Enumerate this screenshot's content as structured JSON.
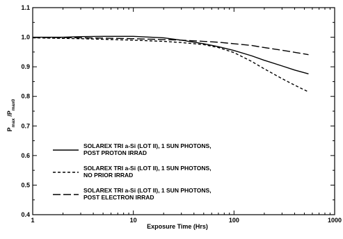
{
  "chart_data": {
    "type": "line",
    "title": "",
    "xlabel": "Exposure Time (Hrs)",
    "ylabel_parts": {
      "p1": "P",
      "s1": "max",
      "slash": " /P",
      "s2": "max0"
    },
    "xscale": "log",
    "xlim": [
      1,
      1000
    ],
    "ylim": [
      0.4,
      1.1
    ],
    "grid": false,
    "legend_position": "lower-left",
    "xticks": [
      {
        "value": 1,
        "label": "1"
      },
      {
        "value": 10,
        "label": "10"
      },
      {
        "value": 100,
        "label": "100"
      },
      {
        "value": 1000,
        "label": "1000"
      }
    ],
    "yticks": [
      {
        "value": 0.4,
        "label": "0.4"
      },
      {
        "value": 0.5,
        "label": "0.5"
      },
      {
        "value": 0.6,
        "label": "0.6"
      },
      {
        "value": 0.7,
        "label": "0.7"
      },
      {
        "value": 0.8,
        "label": "0.8"
      },
      {
        "value": 0.9,
        "label": "0.9"
      },
      {
        "value": 1.0,
        "label": "1.0"
      },
      {
        "value": 1.1,
        "label": "1.1"
      }
    ],
    "series": [
      {
        "id": "post-proton",
        "name_lines": [
          "SOLAREX TRI a-Si (LOT II), 1 SUN PHOTONS,",
          "POST PROTON IRRAD"
        ],
        "dash": "solid",
        "x": [
          1,
          2,
          3,
          5,
          10,
          20,
          30,
          50,
          70,
          100,
          150,
          200,
          300,
          400,
          550
        ],
        "y": [
          1.0,
          1.0,
          1.002,
          1.003,
          1.003,
          0.998,
          0.99,
          0.978,
          0.968,
          0.955,
          0.937,
          0.922,
          0.903,
          0.889,
          0.876
        ]
      },
      {
        "id": "no-prior",
        "name_lines": [
          "SOLAREX TRI a-Si (LOT II), 1 SUN PHOTONS,",
          "NO PRIOR IRRAD"
        ],
        "dash": "short",
        "x": [
          1,
          2,
          3,
          5,
          10,
          20,
          30,
          50,
          70,
          100,
          150,
          200,
          300,
          400,
          550
        ],
        "y": [
          0.998,
          0.996,
          0.995,
          0.993,
          0.99,
          0.986,
          0.982,
          0.975,
          0.965,
          0.948,
          0.918,
          0.893,
          0.86,
          0.838,
          0.815
        ]
      },
      {
        "id": "post-electron",
        "name_lines": [
          "SOLAREX TRI a-Si (LOT II), 1 SUN PHOTONS,",
          "POST ELECTRON IRRAD"
        ],
        "dash": "long",
        "x": [
          1,
          2,
          3,
          5,
          10,
          20,
          30,
          50,
          70,
          100,
          150,
          200,
          300,
          400,
          550
        ],
        "y": [
          0.999,
          0.999,
          0.998,
          0.997,
          0.995,
          0.992,
          0.99,
          0.986,
          0.983,
          0.978,
          0.972,
          0.965,
          0.956,
          0.949,
          0.941
        ]
      }
    ]
  }
}
